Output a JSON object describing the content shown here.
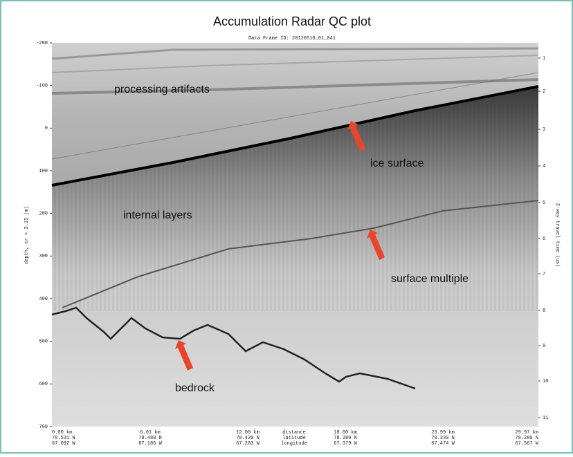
{
  "title": "Accumulation Radar QC plot",
  "frame_id": "Data Frame ID: 20120510_01_041",
  "left_axis_label": "depth, εr = 3.15 (m)",
  "right_axis_label": "2-way travel time (us)",
  "left_ticks": [
    "-200",
    "-100",
    "0",
    "100",
    "200",
    "300",
    "400",
    "500",
    "600",
    "700"
  ],
  "right_ticks": [
    "1",
    "2",
    "3",
    "4",
    "5",
    "6",
    "7",
    "8",
    "9",
    "10",
    "11"
  ],
  "bottom_columns": [
    [
      "0.00 km",
      "78.531 N",
      "67.092 W"
    ],
    [
      "6.01 km",
      "78.480 N",
      "67.186 W"
    ],
    [
      "12.00 km",
      "78.430 N",
      "67.283 W"
    ],
    [
      "distance",
      "latitude",
      "longitude"
    ],
    [
      "18.00 km",
      "78.380 N",
      "67.379 W"
    ],
    [
      "23.99 km",
      "78.330 N",
      "67.474 W"
    ],
    [
      "29.97 km",
      "78.280 N",
      "67.567 W"
    ]
  ],
  "annotations": [
    "processing artifacts",
    "ice surface",
    "internal layers",
    "surface multiple",
    "bedrock"
  ]
}
